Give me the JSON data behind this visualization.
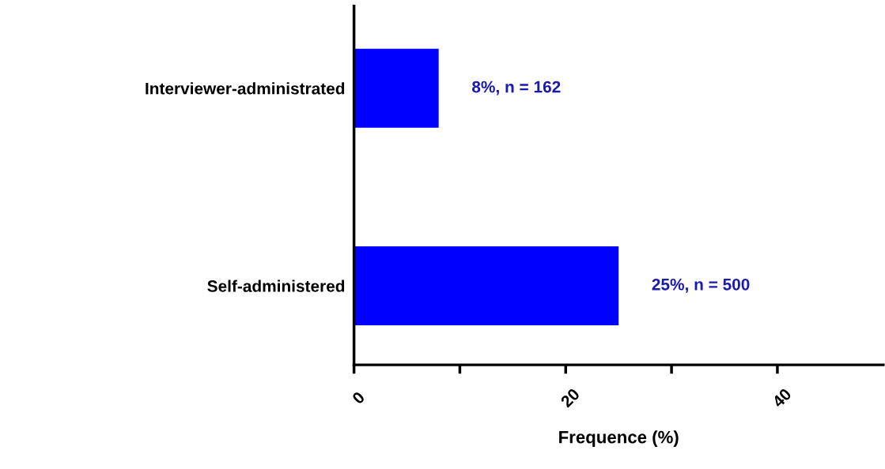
{
  "chart_data": {
    "type": "bar",
    "orientation": "horizontal",
    "xlabel": "Frequence (%)",
    "categories": [
      "Interviewer-administrated",
      "Self-administered"
    ],
    "values": [
      8,
      25
    ],
    "color": "#0000ff",
    "value_labels": [
      "8%, n = 162",
      "25%, n = 500"
    ],
    "xlim": [
      0,
      50
    ],
    "xticks": [
      0,
      {
        "value": 10,
        "label": null
      },
      20,
      {
        "value": 30,
        "label": null
      },
      40
    ],
    "grid": false,
    "legend": false
  }
}
